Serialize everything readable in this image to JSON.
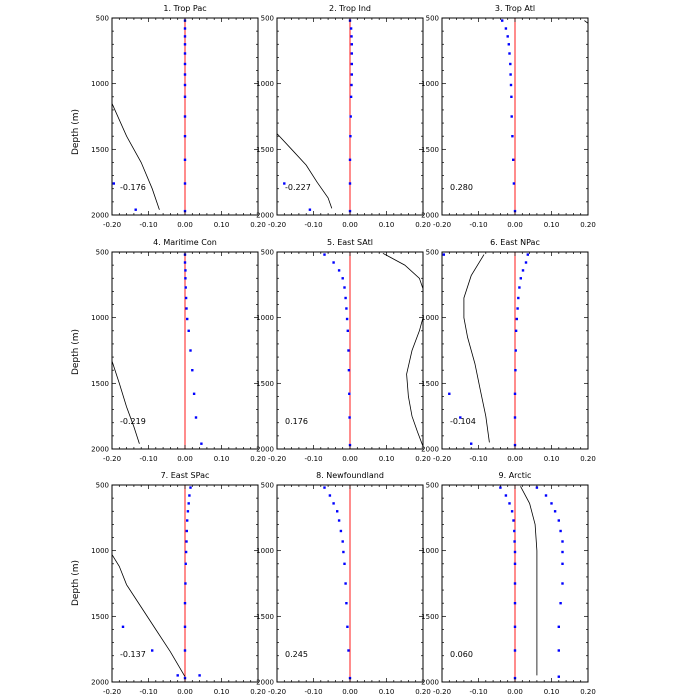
{
  "figure": {
    "y_axis_label": "Depth (m)",
    "depth_ticks": [
      500,
      1000,
      1500,
      2000
    ],
    "x_ticks": [
      -0.2,
      -0.1,
      0.0,
      0.1,
      0.2
    ],
    "x_tick_labels": [
      "-0.20",
      "-0.10",
      "0.00",
      "0.10",
      "0.20"
    ],
    "depth_tick_labels": [
      "500",
      "1000",
      "1500",
      "2000"
    ],
    "colors": {
      "zero_line": "#ff0000",
      "dots": "#0000ff",
      "profile": "#000000"
    }
  },
  "chart_data": [
    {
      "type": "line",
      "title": "1. Trop Pac",
      "annotation": "-0.176",
      "xlim": [
        -0.2,
        0.2
      ],
      "ylim": [
        2000,
        500
      ],
      "y_inverted": true,
      "profile": [
        [
          -0.2,
          1150
        ],
        [
          -0.16,
          1400
        ],
        [
          -0.12,
          1600
        ],
        [
          -0.09,
          1800
        ],
        [
          -0.07,
          1960
        ]
      ],
      "dots": [
        [
          0.0,
          520
        ],
        [
          0.0,
          580
        ],
        [
          0.0,
          640
        ],
        [
          0.0,
          700
        ],
        [
          0.0,
          770
        ],
        [
          0.0,
          850
        ],
        [
          0.0,
          930
        ],
        [
          0.0,
          1010
        ],
        [
          0.0,
          1100
        ],
        [
          0.0,
          1250
        ],
        [
          0.0,
          1400
        ],
        [
          0.0,
          1580
        ],
        [
          0.0,
          1760
        ],
        [
          -0.195,
          1760
        ],
        [
          -0.135,
          1960
        ],
        [
          0.0,
          1970
        ]
      ]
    },
    {
      "type": "line",
      "title": "2. Trop Ind",
      "annotation": "-0.227",
      "xlim": [
        -0.2,
        0.2
      ],
      "ylim": [
        2000,
        500
      ],
      "y_inverted": true,
      "profile": [
        [
          -0.2,
          1380
        ],
        [
          -0.16,
          1500
        ],
        [
          -0.12,
          1620
        ],
        [
          -0.09,
          1750
        ],
        [
          -0.06,
          1870
        ],
        [
          -0.05,
          1950
        ]
      ],
      "dots": [
        [
          0.0,
          520
        ],
        [
          0.003,
          580
        ],
        [
          0.004,
          640
        ],
        [
          0.005,
          700
        ],
        [
          0.005,
          770
        ],
        [
          0.005,
          850
        ],
        [
          0.005,
          930
        ],
        [
          0.004,
          1010
        ],
        [
          0.003,
          1100
        ],
        [
          0.002,
          1250
        ],
        [
          0.001,
          1400
        ],
        [
          0.0,
          1580
        ],
        [
          0.0,
          1760
        ],
        [
          -0.18,
          1760
        ],
        [
          -0.11,
          1960
        ],
        [
          0.0,
          1970
        ]
      ]
    },
    {
      "type": "line",
      "title": "3. Trop Atl",
      "annotation": "0.280",
      "xlim": [
        -0.2,
        0.2
      ],
      "ylim": [
        2000,
        500
      ],
      "y_inverted": true,
      "profile": [
        [
          0.19,
          520
        ],
        [
          0.2,
          540
        ]
      ],
      "dots": [
        [
          -0.035,
          520
        ],
        [
          -0.025,
          580
        ],
        [
          -0.02,
          640
        ],
        [
          -0.017,
          700
        ],
        [
          -0.015,
          770
        ],
        [
          -0.013,
          850
        ],
        [
          -0.012,
          930
        ],
        [
          -0.011,
          1010
        ],
        [
          -0.01,
          1100
        ],
        [
          -0.009,
          1250
        ],
        [
          -0.007,
          1400
        ],
        [
          -0.005,
          1580
        ],
        [
          -0.003,
          1760
        ],
        [
          0.0,
          1970
        ]
      ]
    },
    {
      "type": "line",
      "title": "4. Maritime Con",
      "annotation": "-0.219",
      "xlim": [
        -0.2,
        0.2
      ],
      "ylim": [
        2000,
        500
      ],
      "y_inverted": true,
      "profile": [
        [
          -0.2,
          1330
        ],
        [
          -0.18,
          1500
        ],
        [
          -0.16,
          1680
        ],
        [
          -0.14,
          1830
        ],
        [
          -0.125,
          1960
        ]
      ],
      "dots": [
        [
          0.0,
          520
        ],
        [
          0.0,
          580
        ],
        [
          0.001,
          640
        ],
        [
          0.001,
          700
        ],
        [
          0.002,
          770
        ],
        [
          0.003,
          850
        ],
        [
          0.004,
          930
        ],
        [
          0.006,
          1010
        ],
        [
          0.01,
          1100
        ],
        [
          0.015,
          1250
        ],
        [
          0.02,
          1400
        ],
        [
          0.025,
          1580
        ],
        [
          0.03,
          1760
        ],
        [
          0.045,
          1960
        ]
      ]
    },
    {
      "type": "line",
      "title": "5. East SAtl",
      "annotation": "0.176",
      "xlim": [
        -0.2,
        0.2
      ],
      "ylim": [
        2000,
        500
      ],
      "y_inverted": true,
      "profile": [
        [
          0.09,
          510
        ],
        [
          0.15,
          600
        ],
        [
          0.19,
          700
        ],
        [
          0.2,
          780
        ],
        [
          0.2,
          1000
        ],
        [
          0.19,
          1100
        ],
        [
          0.17,
          1250
        ],
        [
          0.155,
          1430
        ],
        [
          0.16,
          1600
        ],
        [
          0.17,
          1750
        ],
        [
          0.185,
          1870
        ],
        [
          0.2,
          1980
        ]
      ],
      "dots": [
        [
          -0.07,
          520
        ],
        [
          -0.045,
          580
        ],
        [
          -0.03,
          640
        ],
        [
          -0.02,
          700
        ],
        [
          -0.015,
          770
        ],
        [
          -0.012,
          850
        ],
        [
          -0.01,
          930
        ],
        [
          -0.008,
          1010
        ],
        [
          -0.006,
          1100
        ],
        [
          -0.004,
          1250
        ],
        [
          -0.003,
          1400
        ],
        [
          -0.002,
          1580
        ],
        [
          -0.001,
          1760
        ],
        [
          0.0,
          1970
        ]
      ]
    },
    {
      "type": "line",
      "title": "6. East NPac",
      "annotation": "-0.104",
      "xlim": [
        -0.2,
        0.2
      ],
      "ylim": [
        2000,
        500
      ],
      "y_inverted": true,
      "profile": [
        [
          -0.085,
          520
        ],
        [
          -0.12,
          680
        ],
        [
          -0.14,
          850
        ],
        [
          -0.14,
          1000
        ],
        [
          -0.13,
          1150
        ],
        [
          -0.11,
          1350
        ],
        [
          -0.095,
          1550
        ],
        [
          -0.08,
          1750
        ],
        [
          -0.07,
          1950
        ]
      ],
      "dots": [
        [
          0.035,
          520
        ],
        [
          0.03,
          580
        ],
        [
          0.022,
          640
        ],
        [
          0.016,
          700
        ],
        [
          0.012,
          770
        ],
        [
          0.009,
          850
        ],
        [
          0.007,
          930
        ],
        [
          0.005,
          1010
        ],
        [
          0.003,
          1100
        ],
        [
          0.002,
          1250
        ],
        [
          0.001,
          1400
        ],
        [
          0.0,
          1580
        ],
        [
          0.0,
          1760
        ],
        [
          -0.195,
          520
        ],
        [
          -0.18,
          1580
        ],
        [
          -0.15,
          1760
        ],
        [
          -0.12,
          1960
        ],
        [
          0.0,
          1970
        ]
      ]
    },
    {
      "type": "line",
      "title": "7. East SPac",
      "annotation": "-0.137",
      "xlim": [
        -0.2,
        0.2
      ],
      "ylim": [
        2000,
        500
      ],
      "y_inverted": true,
      "profile": [
        [
          -0.2,
          1030
        ],
        [
          -0.18,
          1120
        ],
        [
          -0.16,
          1260
        ],
        [
          -0.12,
          1430
        ],
        [
          -0.08,
          1600
        ],
        [
          -0.04,
          1770
        ],
        [
          0.0,
          1960
        ]
      ],
      "dots": [
        [
          0.015,
          520
        ],
        [
          0.012,
          580
        ],
        [
          0.01,
          640
        ],
        [
          0.008,
          700
        ],
        [
          0.006,
          770
        ],
        [
          0.005,
          850
        ],
        [
          0.004,
          930
        ],
        [
          0.003,
          1010
        ],
        [
          0.002,
          1100
        ],
        [
          0.001,
          1250
        ],
        [
          0.0,
          1400
        ],
        [
          0.0,
          1580
        ],
        [
          0.0,
          1760
        ],
        [
          -0.17,
          1580
        ],
        [
          -0.09,
          1760
        ],
        [
          -0.02,
          1950
        ],
        [
          0.04,
          1950
        ],
        [
          0.0,
          1970
        ]
      ]
    },
    {
      "type": "line",
      "title": "8. Newfoundland",
      "annotation": "0.245",
      "xlim": [
        -0.2,
        0.2
      ],
      "ylim": [
        2000,
        500
      ],
      "y_inverted": true,
      "profile": [],
      "dots": [
        [
          -0.07,
          520
        ],
        [
          -0.055,
          580
        ],
        [
          -0.045,
          640
        ],
        [
          -0.035,
          700
        ],
        [
          -0.03,
          770
        ],
        [
          -0.025,
          850
        ],
        [
          -0.02,
          930
        ],
        [
          -0.018,
          1010
        ],
        [
          -0.015,
          1100
        ],
        [
          -0.012,
          1250
        ],
        [
          -0.01,
          1400
        ],
        [
          -0.007,
          1580
        ],
        [
          -0.004,
          1760
        ],
        [
          0.0,
          1970
        ]
      ]
    },
    {
      "type": "line",
      "title": "9. Arctic",
      "annotation": "0.060",
      "xlim": [
        -0.2,
        0.2
      ],
      "ylim": [
        2000,
        500
      ],
      "y_inverted": true,
      "profile": [
        [
          0.015,
          510
        ],
        [
          0.04,
          640
        ],
        [
          0.055,
          800
        ],
        [
          0.06,
          1000
        ],
        [
          0.06,
          1200
        ],
        [
          0.06,
          1400
        ],
        [
          0.06,
          1600
        ],
        [
          0.06,
          1800
        ],
        [
          0.06,
          1950
        ]
      ],
      "dots": [
        [
          -0.04,
          520
        ],
        [
          -0.025,
          580
        ],
        [
          -0.015,
          640
        ],
        [
          -0.008,
          700
        ],
        [
          -0.004,
          770
        ],
        [
          -0.002,
          850
        ],
        [
          -0.001,
          930
        ],
        [
          0.0,
          1010
        ],
        [
          0.0,
          1100
        ],
        [
          0.0,
          1250
        ],
        [
          0.0,
          1400
        ],
        [
          0.0,
          1580
        ],
        [
          0.0,
          1760
        ],
        [
          0.0,
          1970
        ],
        [
          0.06,
          520
        ],
        [
          0.085,
          580
        ],
        [
          0.1,
          640
        ],
        [
          0.11,
          700
        ],
        [
          0.12,
          770
        ],
        [
          0.125,
          850
        ],
        [
          0.13,
          930
        ],
        [
          0.13,
          1010
        ],
        [
          0.13,
          1100
        ],
        [
          0.13,
          1250
        ],
        [
          0.125,
          1400
        ],
        [
          0.12,
          1580
        ],
        [
          0.12,
          1760
        ],
        [
          0.12,
          1960
        ]
      ]
    }
  ]
}
